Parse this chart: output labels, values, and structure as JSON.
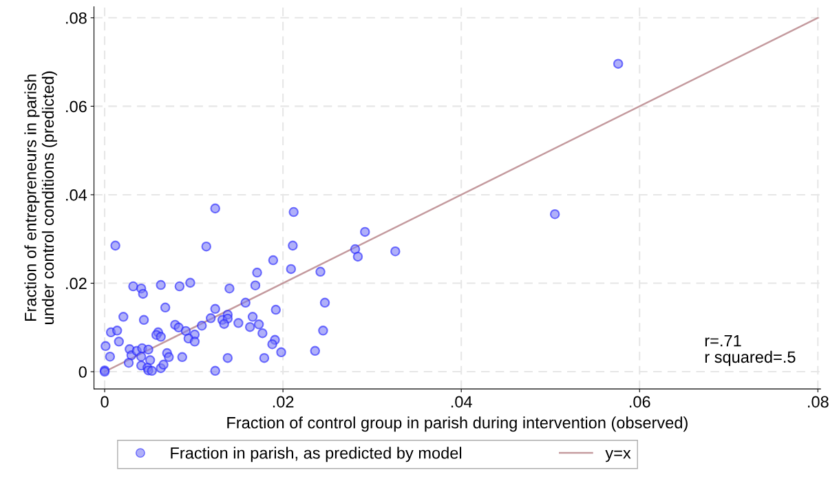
{
  "chart_data": {
    "type": "scatter",
    "xlabel": "Fraction of control group in parish during intervention (observed)",
    "ylabel": "Fraction of entrepreneurs in parish\nunder control conditions (predicted)",
    "xlim": [
      -0.0012,
      0.0803
    ],
    "ylim": [
      -0.0039,
      0.0825
    ],
    "xticks": [
      0,
      {
        "value": 0.02,
        "label": ".02"
      },
      {
        "value": 0.04,
        "label": ".04"
      },
      {
        "value": 0.06,
        "label": ".06"
      },
      {
        "value": 0.08,
        "label": ".08"
      }
    ],
    "yticks": [
      0,
      {
        "value": 0.02,
        "label": ".02"
      },
      {
        "value": 0.04,
        "label": ".04"
      },
      {
        "value": 0.06,
        "label": ".06"
      },
      {
        "value": 0.08,
        "label": ".08"
      }
    ],
    "grid": true,
    "legend": "bottom",
    "marker": "circle",
    "annotations": [
      "r=.71\nr squared=.5"
    ],
    "series": [
      {
        "name": "Fraction in parish, as predicted by model",
        "color": "#7b7bf5",
        "x": [
          0.0124,
          0.0012,
          0.0114,
          0.0171,
          0.0032,
          0.0041,
          0.0043,
          0.0063,
          0.0084,
          0.0096,
          0.014,
          0.0169,
          0.0068,
          0.0021,
          0.0044,
          0.0158,
          0.0124,
          0.0119,
          0.0138,
          0.0132,
          0.0138,
          0.0134,
          0.015,
          0.0166,
          0.0163,
          0.0173,
          0.0109,
          0.0079,
          0.0083,
          0.0091,
          0.0101,
          0.0094,
          0.0101,
          0.006,
          0.0058,
          0.0063,
          0.0007,
          0.0014,
          0.0016,
          0.0001,
          0.0006,
          0.0028,
          0.003,
          0.0036,
          0.0042,
          0.0049,
          0.0041,
          0.007,
          0.0072,
          0.0051,
          0.0027,
          0.0041,
          0.0048,
          0.0049,
          0.0053,
          0.0063,
          0.0066,
          0.0087,
          0.0124,
          0.0138,
          0,
          0,
          0.0177,
          0.0212,
          0.0211,
          0.0189,
          0.0209,
          0.0242,
          0.0292,
          0.0281,
          0.0284,
          0.0326,
          0.0247,
          0.0192,
          0.0191,
          0.0188,
          0.0198,
          0.0179,
          0.0236,
          0.0245,
          0.0576,
          0.0505
        ],
        "values": [
          0.0369,
          0.0285,
          0.0283,
          0.0224,
          0.0193,
          0.0188,
          0.0176,
          0.0196,
          0.0193,
          0.0201,
          0.0188,
          0.0195,
          0.0145,
          0.0124,
          0.0117,
          0.0156,
          0.0142,
          0.0121,
          0.0129,
          0.0117,
          0.012,
          0.0108,
          0.011,
          0.0124,
          0.0101,
          0.0107,
          0.0104,
          0.0106,
          0.01,
          0.0092,
          0.0084,
          0.0075,
          0.0068,
          0.0089,
          0.0083,
          0.0079,
          0.0089,
          0.0093,
          0.0068,
          0.0058,
          0.0034,
          0.0051,
          0.0037,
          0.0047,
          0.0053,
          0.005,
          0.0034,
          0.0042,
          0.0033,
          0.0026,
          0.002,
          0.0014,
          0.0009,
          0.0003,
          0.0002,
          0.0008,
          0.0016,
          0.0033,
          0.0002,
          0.0031,
          0.0003,
          0,
          0.0087,
          0.0361,
          0.0285,
          0.0252,
          0.0232,
          0.0226,
          0.0316,
          0.0277,
          0.026,
          0.0272,
          0.0156,
          0.014,
          0.0072,
          0.0062,
          0.0044,
          0.0031,
          0.0047,
          0.0093,
          0.0696,
          0.0356
        ]
      },
      {
        "name": "y=x",
        "type": "line",
        "color": "#c49a9e",
        "marker": "none",
        "x": [
          0,
          0.08
        ],
        "values": [
          0,
          0.08
        ]
      }
    ]
  }
}
